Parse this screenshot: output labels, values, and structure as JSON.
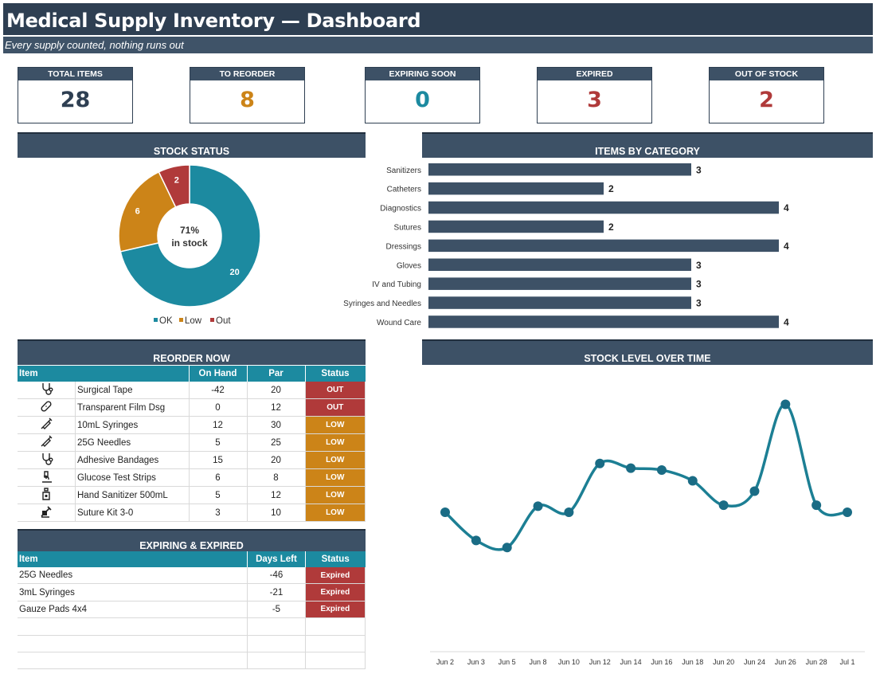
{
  "header": {
    "title": "Medical Supply Inventory — Dashboard",
    "subtitle": "Every supply counted, nothing runs out"
  },
  "kpis": [
    {
      "label": "TOTAL ITEMS",
      "value": "28",
      "color": "#2e3f52"
    },
    {
      "label": "TO REORDER",
      "value": "8",
      "color": "#cc8418"
    },
    {
      "label": "EXPIRING SOON",
      "value": "0",
      "color": "#1c8aa0"
    },
    {
      "label": "EXPIRED",
      "value": "3",
      "color": "#b03a3a"
    },
    {
      "label": "OUT OF STOCK",
      "value": "2",
      "color": "#b03a3a"
    }
  ],
  "panels": {
    "stock_status": "STOCK STATUS",
    "items_by_category": "ITEMS BY CATEGORY",
    "reorder_now": "REORDER NOW",
    "stock_level": "STOCK LEVEL OVER TIME",
    "expiring": "EXPIRING & EXPIRED"
  },
  "colors": {
    "ok": "#1c8aa0",
    "low": "#cc8418",
    "out": "#b03a3a",
    "bar": "#3d5166",
    "line": "#1c7f94"
  },
  "chart_data": [
    {
      "type": "pie",
      "donut": true,
      "labels": [
        "OK",
        "Low",
        "Out"
      ],
      "values": [
        20,
        6,
        2
      ],
      "center_label": [
        "71%",
        "in stock"
      ],
      "legend": "bottom"
    },
    {
      "type": "bar",
      "orientation": "horizontal",
      "categories": [
        "Sanitizers",
        "Catheters",
        "Diagnostics",
        "Sutures",
        "Dressings",
        "Gloves",
        "IV and Tubing",
        "Syringes and Needles",
        "Wound Care"
      ],
      "values": [
        3,
        2,
        4,
        2,
        4,
        3,
        3,
        3,
        4
      ],
      "xlim": [
        0,
        4
      ]
    },
    {
      "type": "line",
      "smooth": true,
      "x": [
        "Jun 2",
        "Jun 3",
        "Jun 5",
        "Jun 8",
        "Jun 10",
        "Jun 12",
        "Jun 14",
        "Jun 16",
        "Jun 18",
        "Jun 20",
        "Jun 24",
        "Jun 26",
        "Jun 28",
        "Jul 1"
      ],
      "y": [
        40,
        34,
        32.5,
        41.3,
        40,
        50.4,
        49.4,
        49,
        46.7,
        41.5,
        44.5,
        63,
        41.5,
        40
      ],
      "ylim": [
        12,
        68
      ],
      "grid": false
    }
  ],
  "reorder": {
    "columns": [
      "Item",
      "On Hand",
      "Par",
      "Status"
    ],
    "rows": [
      {
        "icon": "stethoscope-icon",
        "item": "Surgical Tape",
        "on_hand": "-42",
        "par": "20",
        "status": "OUT",
        "kind": "out"
      },
      {
        "icon": "bandage-icon",
        "item": "Transparent Film Dsg",
        "on_hand": "0",
        "par": "12",
        "status": "OUT",
        "kind": "out"
      },
      {
        "icon": "syringe-icon",
        "item": "10mL Syringes",
        "on_hand": "12",
        "par": "30",
        "status": "LOW",
        "kind": "low"
      },
      {
        "icon": "syringe-icon",
        "item": "25G Needles",
        "on_hand": "5",
        "par": "25",
        "status": "LOW",
        "kind": "low"
      },
      {
        "icon": "stethoscope-icon",
        "item": "Adhesive Bandages",
        "on_hand": "15",
        "par": "20",
        "status": "LOW",
        "kind": "low"
      },
      {
        "icon": "microscope-icon",
        "item": "Glucose Test Strips",
        "on_hand": "6",
        "par": "8",
        "status": "LOW",
        "kind": "low"
      },
      {
        "icon": "sanitizer-bottle-icon",
        "item": "Hand Sanitizer 500mL",
        "on_hand": "5",
        "par": "12",
        "status": "LOW",
        "kind": "low"
      },
      {
        "icon": "suture-kit-icon",
        "item": "Suture Kit 3-0",
        "on_hand": "3",
        "par": "10",
        "status": "LOW",
        "kind": "low"
      }
    ]
  },
  "expiring": {
    "columns": [
      "Item",
      "Days Left",
      "Status"
    ],
    "rows": [
      {
        "item": "25G Needles",
        "days": "-46",
        "status": "Expired"
      },
      {
        "item": "3mL Syringes",
        "days": "-21",
        "status": "Expired"
      },
      {
        "item": "Gauze Pads 4x4",
        "days": "-5",
        "status": "Expired"
      },
      {
        "item": "",
        "days": "",
        "status": ""
      },
      {
        "item": "",
        "days": "",
        "status": ""
      },
      {
        "item": "",
        "days": "",
        "status": ""
      }
    ]
  }
}
